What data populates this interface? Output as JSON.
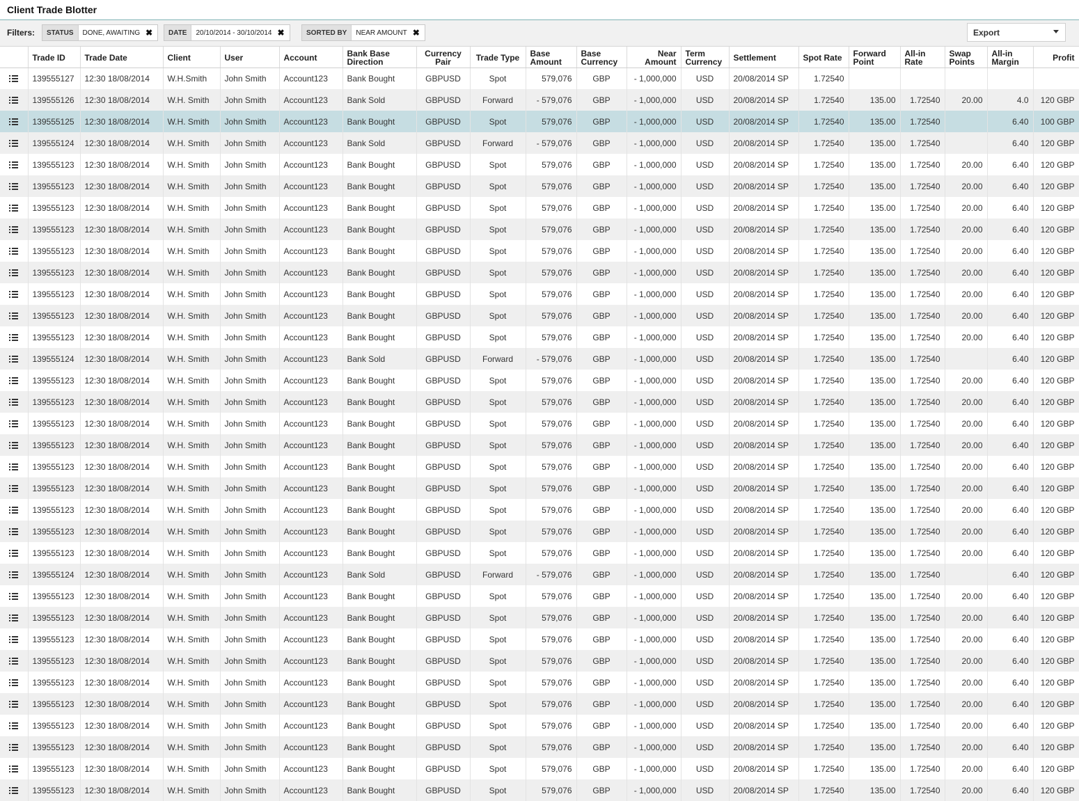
{
  "app": {
    "title": "Client Trade Blotter"
  },
  "filters": {
    "label": "Filters:",
    "chips": [
      {
        "key": "STATUS",
        "value": "DONE, AWAITING"
      },
      {
        "key": "DATE",
        "value": "20/10/2014 - 30/10/2014"
      },
      {
        "key": "SORTED BY",
        "value": "NEAR AMOUNT"
      }
    ],
    "export_label": "Export"
  },
  "table": {
    "columns": [
      {
        "key": "menu",
        "label": ""
      },
      {
        "key": "trade_id",
        "label": "Trade ID"
      },
      {
        "key": "trade_date",
        "label": "Trade Date"
      },
      {
        "key": "client",
        "label": "Client"
      },
      {
        "key": "user",
        "label": "User"
      },
      {
        "key": "account",
        "label": "Account"
      },
      {
        "key": "direction",
        "label": "Bank Base Direction"
      },
      {
        "key": "pair",
        "label": "Currency Pair"
      },
      {
        "key": "type",
        "label": "Trade Type"
      },
      {
        "key": "base_amount",
        "label": "Base Amount"
      },
      {
        "key": "base_ccy",
        "label": "Base Currency"
      },
      {
        "key": "near_amount",
        "label": "Near Amount"
      },
      {
        "key": "term_ccy",
        "label": "Term Currency"
      },
      {
        "key": "settlement",
        "label": "Settlement"
      },
      {
        "key": "spot_rate",
        "label": "Spot Rate"
      },
      {
        "key": "fwd_point",
        "label": "Forward Point"
      },
      {
        "key": "allin_rate",
        "label": "All-in Rate"
      },
      {
        "key": "swap_points",
        "label": "Swap Points"
      },
      {
        "key": "allin_margin",
        "label": "All-in Margin"
      },
      {
        "key": "profit",
        "label": "Profit"
      }
    ],
    "selected_row": 2,
    "rows": [
      [
        "139555127",
        "12:30  18/08/2014",
        "W.H.Smith",
        "John Smith",
        "Account123",
        "Bank Bought",
        "GBPUSD",
        "Spot",
        "579,076",
        "GBP",
        "- 1,000,000",
        "USD",
        "20/08/2014 SP",
        "1.72540",
        "",
        "",
        "",
        "",
        ""
      ],
      [
        "139555126",
        "12:30  18/08/2014",
        "W.H. Smith",
        "John Smith",
        "Account123",
        "Bank Sold",
        "GBPUSD",
        "Forward",
        "- 579,076",
        "GBP",
        "- 1,000,000",
        "USD",
        "20/08/2014 SP",
        "1.72540",
        "135.00",
        "1.72540",
        "20.00",
        "4.0",
        "120 GBP"
      ],
      [
        "139555125",
        "12:30  18/08/2014",
        "W.H. Smith",
        "John Smith",
        "Account123",
        "Bank Bought",
        "GBPUSD",
        "Spot",
        "579,076",
        "GBP",
        "- 1,000,000",
        "USD",
        "20/08/2014 SP",
        "1.72540",
        "135.00",
        "1.72540",
        "",
        "6.40",
        "100 GBP"
      ],
      [
        "139555124",
        "12:30  18/08/2014",
        "W.H. Smith",
        "John Smith",
        "Account123",
        "Bank Sold",
        "GBPUSD",
        "Forward",
        "- 579,076",
        "GBP",
        "- 1,000,000",
        "USD",
        "20/08/2014 SP",
        "1.72540",
        "135.00",
        "1.72540",
        "",
        "6.40",
        "120 GBP"
      ],
      [
        "139555123",
        "12:30  18/08/2014",
        "W.H. Smith",
        "John Smith",
        "Account123",
        "Bank Bought",
        "GBPUSD",
        "Spot",
        "579,076",
        "GBP",
        "- 1,000,000",
        "USD",
        "20/08/2014 SP",
        "1.72540",
        "135.00",
        "1.72540",
        "20.00",
        "6.40",
        "120 GBP"
      ],
      [
        "139555123",
        "12:30  18/08/2014",
        "W.H. Smith",
        "John Smith",
        "Account123",
        "Bank Bought",
        "GBPUSD",
        "Spot",
        "579,076",
        "GBP",
        "- 1,000,000",
        "USD",
        "20/08/2014 SP",
        "1.72540",
        "135.00",
        "1.72540",
        "20.00",
        "6.40",
        "120 GBP"
      ],
      [
        "139555123",
        "12:30  18/08/2014",
        "W.H. Smith",
        "John Smith",
        "Account123",
        "Bank Bought",
        "GBPUSD",
        "Spot",
        "579,076",
        "GBP",
        "- 1,000,000",
        "USD",
        "20/08/2014 SP",
        "1.72540",
        "135.00",
        "1.72540",
        "20.00",
        "6.40",
        "120 GBP"
      ],
      [
        "139555123",
        "12:30  18/08/2014",
        "W.H. Smith",
        "John Smith",
        "Account123",
        "Bank Bought",
        "GBPUSD",
        "Spot",
        "579,076",
        "GBP",
        "- 1,000,000",
        "USD",
        "20/08/2014 SP",
        "1.72540",
        "135.00",
        "1.72540",
        "20.00",
        "6.40",
        "120 GBP"
      ],
      [
        "139555123",
        "12:30  18/08/2014",
        "W.H. Smith",
        "John Smith",
        "Account123",
        "Bank Bought",
        "GBPUSD",
        "Spot",
        "579,076",
        "GBP",
        "- 1,000,000",
        "USD",
        "20/08/2014 SP",
        "1.72540",
        "135.00",
        "1.72540",
        "20.00",
        "6.40",
        "120 GBP"
      ],
      [
        "139555123",
        "12:30  18/08/2014",
        "W.H. Smith",
        "John Smith",
        "Account123",
        "Bank Bought",
        "GBPUSD",
        "Spot",
        "579,076",
        "GBP",
        "- 1,000,000",
        "USD",
        "20/08/2014 SP",
        "1.72540",
        "135.00",
        "1.72540",
        "20.00",
        "6.40",
        "120 GBP"
      ],
      [
        "139555123",
        "12:30  18/08/2014",
        "W.H. Smith",
        "John Smith",
        "Account123",
        "Bank Bought",
        "GBPUSD",
        "Spot",
        "579,076",
        "GBP",
        "- 1,000,000",
        "USD",
        "20/08/2014 SP",
        "1.72540",
        "135.00",
        "1.72540",
        "20.00",
        "6.40",
        "120 GBP"
      ],
      [
        "139555123",
        "12:30  18/08/2014",
        "W.H. Smith",
        "John Smith",
        "Account123",
        "Bank Bought",
        "GBPUSD",
        "Spot",
        "579,076",
        "GBP",
        "- 1,000,000",
        "USD",
        "20/08/2014 SP",
        "1.72540",
        "135.00",
        "1.72540",
        "20.00",
        "6.40",
        "120 GBP"
      ],
      [
        "139555123",
        "12:30  18/08/2014",
        "W.H. Smith",
        "John Smith",
        "Account123",
        "Bank Bought",
        "GBPUSD",
        "Spot",
        "579,076",
        "GBP",
        "- 1,000,000",
        "USD",
        "20/08/2014 SP",
        "1.72540",
        "135.00",
        "1.72540",
        "20.00",
        "6.40",
        "120 GBP"
      ],
      [
        "139555124",
        "12:30  18/08/2014",
        "W.H. Smith",
        "John Smith",
        "Account123",
        "Bank Sold",
        "GBPUSD",
        "Forward",
        "- 579,076",
        "GBP",
        "- 1,000,000",
        "USD",
        "20/08/2014 SP",
        "1.72540",
        "135.00",
        "1.72540",
        "",
        "6.40",
        "120 GBP"
      ],
      [
        "139555123",
        "12:30  18/08/2014",
        "W.H. Smith",
        "John Smith",
        "Account123",
        "Bank Bought",
        "GBPUSD",
        "Spot",
        "579,076",
        "GBP",
        "- 1,000,000",
        "USD",
        "20/08/2014 SP",
        "1.72540",
        "135.00",
        "1.72540",
        "20.00",
        "6.40",
        "120 GBP"
      ],
      [
        "139555123",
        "12:30  18/08/2014",
        "W.H. Smith",
        "John Smith",
        "Account123",
        "Bank Bought",
        "GBPUSD",
        "Spot",
        "579,076",
        "GBP",
        "- 1,000,000",
        "USD",
        "20/08/2014 SP",
        "1.72540",
        "135.00",
        "1.72540",
        "20.00",
        "6.40",
        "120 GBP"
      ],
      [
        "139555123",
        "12:30  18/08/2014",
        "W.H. Smith",
        "John Smith",
        "Account123",
        "Bank Bought",
        "GBPUSD",
        "Spot",
        "579,076",
        "GBP",
        "- 1,000,000",
        "USD",
        "20/08/2014 SP",
        "1.72540",
        "135.00",
        "1.72540",
        "20.00",
        "6.40",
        "120 GBP"
      ],
      [
        "139555123",
        "12:30  18/08/2014",
        "W.H. Smith",
        "John Smith",
        "Account123",
        "Bank Bought",
        "GBPUSD",
        "Spot",
        "579,076",
        "GBP",
        "- 1,000,000",
        "USD",
        "20/08/2014 SP",
        "1.72540",
        "135.00",
        "1.72540",
        "20.00",
        "6.40",
        "120 GBP"
      ],
      [
        "139555123",
        "12:30  18/08/2014",
        "W.H. Smith",
        "John Smith",
        "Account123",
        "Bank Bought",
        "GBPUSD",
        "Spot",
        "579,076",
        "GBP",
        "- 1,000,000",
        "USD",
        "20/08/2014 SP",
        "1.72540",
        "135.00",
        "1.72540",
        "20.00",
        "6.40",
        "120 GBP"
      ],
      [
        "139555123",
        "12:30  18/08/2014",
        "W.H. Smith",
        "John Smith",
        "Account123",
        "Bank Bought",
        "GBPUSD",
        "Spot",
        "579,076",
        "GBP",
        "- 1,000,000",
        "USD",
        "20/08/2014 SP",
        "1.72540",
        "135.00",
        "1.72540",
        "20.00",
        "6.40",
        "120 GBP"
      ],
      [
        "139555123",
        "12:30  18/08/2014",
        "W.H. Smith",
        "John Smith",
        "Account123",
        "Bank Bought",
        "GBPUSD",
        "Spot",
        "579,076",
        "GBP",
        "- 1,000,000",
        "USD",
        "20/08/2014 SP",
        "1.72540",
        "135.00",
        "1.72540",
        "20.00",
        "6.40",
        "120 GBP"
      ],
      [
        "139555123",
        "12:30  18/08/2014",
        "W.H. Smith",
        "John Smith",
        "Account123",
        "Bank Bought",
        "GBPUSD",
        "Spot",
        "579,076",
        "GBP",
        "- 1,000,000",
        "USD",
        "20/08/2014 SP",
        "1.72540",
        "135.00",
        "1.72540",
        "20.00",
        "6.40",
        "120 GBP"
      ],
      [
        "139555123",
        "12:30  18/08/2014",
        "W.H. Smith",
        "John Smith",
        "Account123",
        "Bank Bought",
        "GBPUSD",
        "Spot",
        "579,076",
        "GBP",
        "- 1,000,000",
        "USD",
        "20/08/2014 SP",
        "1.72540",
        "135.00",
        "1.72540",
        "20.00",
        "6.40",
        "120 GBP"
      ],
      [
        "139555124",
        "12:30  18/08/2014",
        "W.H. Smith",
        "John Smith",
        "Account123",
        "Bank Sold",
        "GBPUSD",
        "Forward",
        "- 579,076",
        "GBP",
        "- 1,000,000",
        "USD",
        "20/08/2014 SP",
        "1.72540",
        "135.00",
        "1.72540",
        "",
        "6.40",
        "120 GBP"
      ],
      [
        "139555123",
        "12:30  18/08/2014",
        "W.H. Smith",
        "John Smith",
        "Account123",
        "Bank Bought",
        "GBPUSD",
        "Spot",
        "579,076",
        "GBP",
        "- 1,000,000",
        "USD",
        "20/08/2014 SP",
        "1.72540",
        "135.00",
        "1.72540",
        "20.00",
        "6.40",
        "120 GBP"
      ],
      [
        "139555123",
        "12:30  18/08/2014",
        "W.H. Smith",
        "John Smith",
        "Account123",
        "Bank Bought",
        "GBPUSD",
        "Spot",
        "579,076",
        "GBP",
        "- 1,000,000",
        "USD",
        "20/08/2014 SP",
        "1.72540",
        "135.00",
        "1.72540",
        "20.00",
        "6.40",
        "120 GBP"
      ],
      [
        "139555123",
        "12:30  18/08/2014",
        "W.H. Smith",
        "John Smith",
        "Account123",
        "Bank Bought",
        "GBPUSD",
        "Spot",
        "579,076",
        "GBP",
        "- 1,000,000",
        "USD",
        "20/08/2014 SP",
        "1.72540",
        "135.00",
        "1.72540",
        "20.00",
        "6.40",
        "120 GBP"
      ],
      [
        "139555123",
        "12:30  18/08/2014",
        "W.H. Smith",
        "John Smith",
        "Account123",
        "Bank Bought",
        "GBPUSD",
        "Spot",
        "579,076",
        "GBP",
        "- 1,000,000",
        "USD",
        "20/08/2014 SP",
        "1.72540",
        "135.00",
        "1.72540",
        "20.00",
        "6.40",
        "120 GBP"
      ],
      [
        "139555123",
        "12:30  18/08/2014",
        "W.H. Smith",
        "John Smith",
        "Account123",
        "Bank Bought",
        "GBPUSD",
        "Spot",
        "579,076",
        "GBP",
        "- 1,000,000",
        "USD",
        "20/08/2014 SP",
        "1.72540",
        "135.00",
        "1.72540",
        "20.00",
        "6.40",
        "120 GBP"
      ],
      [
        "139555123",
        "12:30  18/08/2014",
        "W.H. Smith",
        "John Smith",
        "Account123",
        "Bank Bought",
        "GBPUSD",
        "Spot",
        "579,076",
        "GBP",
        "- 1,000,000",
        "USD",
        "20/08/2014 SP",
        "1.72540",
        "135.00",
        "1.72540",
        "20.00",
        "6.40",
        "120 GBP"
      ],
      [
        "139555123",
        "12:30  18/08/2014",
        "W.H. Smith",
        "John Smith",
        "Account123",
        "Bank Bought",
        "GBPUSD",
        "Spot",
        "579,076",
        "GBP",
        "- 1,000,000",
        "USD",
        "20/08/2014 SP",
        "1.72540",
        "135.00",
        "1.72540",
        "20.00",
        "6.40",
        "120 GBP"
      ],
      [
        "139555123",
        "12:30  18/08/2014",
        "W.H. Smith",
        "John Smith",
        "Account123",
        "Bank Bought",
        "GBPUSD",
        "Spot",
        "579,076",
        "GBP",
        "- 1,000,000",
        "USD",
        "20/08/2014 SP",
        "1.72540",
        "135.00",
        "1.72540",
        "20.00",
        "6.40",
        "120 GBP"
      ],
      [
        "139555123",
        "12:30  18/08/2014",
        "W.H. Smith",
        "John Smith",
        "Account123",
        "Bank Bought",
        "GBPUSD",
        "Spot",
        "579,076",
        "GBP",
        "- 1,000,000",
        "USD",
        "20/08/2014 SP",
        "1.72540",
        "135.00",
        "1.72540",
        "20.00",
        "6.40",
        "120 GBP"
      ],
      [
        "139555123",
        "12:30  18/08/2014",
        "W.H. Smith",
        "John Smith",
        "Account123",
        "Bank Bought",
        "GBPUSD",
        "Spot",
        "579,076",
        "GBP",
        "- 1,000,000",
        "USD",
        "20/08/2014 SP",
        "1.72540",
        "135.00",
        "1.72540",
        "20.00",
        "6.40",
        "120 GBP"
      ]
    ]
  },
  "colors": {
    "accent_border": "#7fb3b5",
    "selected_row": "#c6dde2",
    "stripe": "#efefef"
  },
  "icons": {
    "row_menu": "list-icon",
    "chip_remove": "close-icon",
    "dropdown": "chevron-down-icon"
  }
}
